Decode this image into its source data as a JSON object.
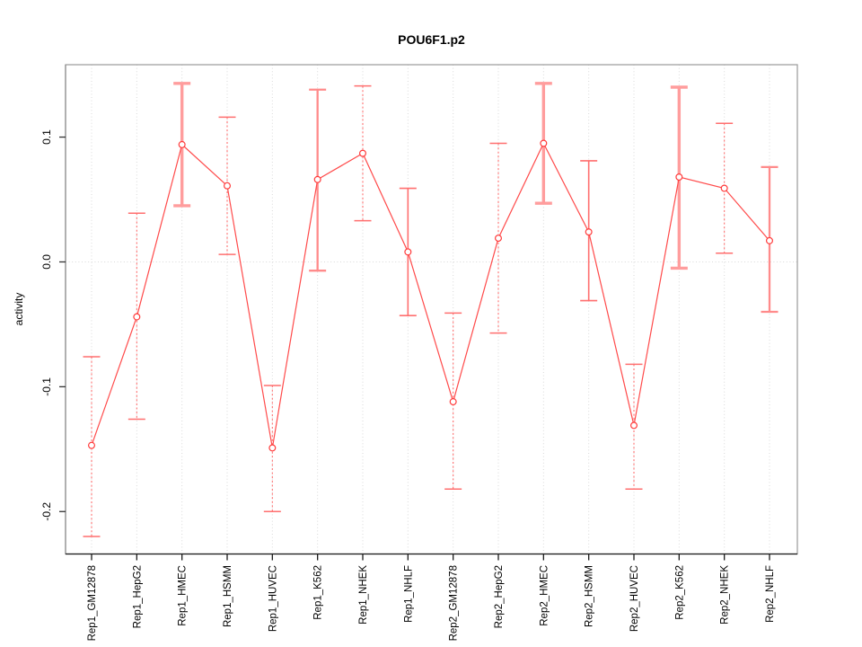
{
  "figure": {
    "kind": "r-base-errorbar-plot",
    "background": "#ffffff"
  },
  "chart_data": {
    "type": "line",
    "title": "POU6F1.p2",
    "xlabel": "",
    "ylabel": "activity",
    "legend": "none",
    "marker": "open-circle",
    "categories": [
      "Rep1_GM12878",
      "Rep1_HepG2",
      "Rep1_HMEC",
      "Rep1_HSMM",
      "Rep1_HUVEC",
      "Rep1_K562",
      "Rep1_NHEK",
      "Rep1_NHLF",
      "Rep2_GM12878",
      "Rep2_HepG2",
      "Rep2_HMEC",
      "Rep2_HSMM",
      "Rep2_HUVEC",
      "Rep2_K562",
      "Rep2_NHEK",
      "Rep2_NHLF"
    ],
    "series": [
      {
        "name": "activity",
        "values": [
          -0.147,
          -0.044,
          0.094,
          0.061,
          -0.149,
          0.066,
          0.087,
          0.008,
          -0.112,
          0.019,
          0.095,
          0.024,
          -0.131,
          0.068,
          0.059,
          0.017
        ],
        "err_hi": [
          -0.076,
          0.039,
          0.143,
          0.116,
          -0.099,
          0.138,
          0.141,
          0.059,
          -0.041,
          0.095,
          0.143,
          0.081,
          -0.082,
          0.14,
          0.111,
          0.076
        ],
        "err_lo": [
          -0.22,
          -0.126,
          0.045,
          0.006,
          -0.2,
          -0.007,
          0.033,
          -0.043,
          -0.182,
          -0.057,
          0.047,
          -0.031,
          -0.182,
          -0.005,
          0.007,
          -0.04
        ],
        "bar_styles": [
          "dashed",
          "dashed",
          "thick",
          "dashed",
          "dashed",
          "medium",
          "dashed",
          "solid",
          "dashed",
          "dashed",
          "thick",
          "solid",
          "dashed",
          "thick",
          "dashed",
          "medium"
        ]
      }
    ],
    "yticks": [
      {
        "value": 0.1,
        "label": "0.1"
      },
      {
        "value": 0.0,
        "label": "0.0"
      },
      {
        "value": -0.1,
        "label": "-0.1"
      },
      {
        "value": -0.2,
        "label": "-0.2"
      }
    ],
    "ylim": [
      -0.234,
      0.158
    ],
    "grid": {
      "vertical_dotted_per_category": true,
      "horizontal_dotted_zero_line": true
    },
    "colors": {
      "line": "#ff4a4a",
      "marker_stroke": "#ff3b3b",
      "marker_fill": "#ffffff",
      "errorbar_thin": "#ff6f6f",
      "errorbar_medium": "#ff8b8b",
      "errorbar_thick": "#ff9d9d",
      "grid": "#d9d9d9",
      "box": "#9a9a9a",
      "axis_bottom": "#1a1a1a",
      "axis_left": "#8a8a8a",
      "tick": "#333333",
      "text": "#000000"
    }
  }
}
